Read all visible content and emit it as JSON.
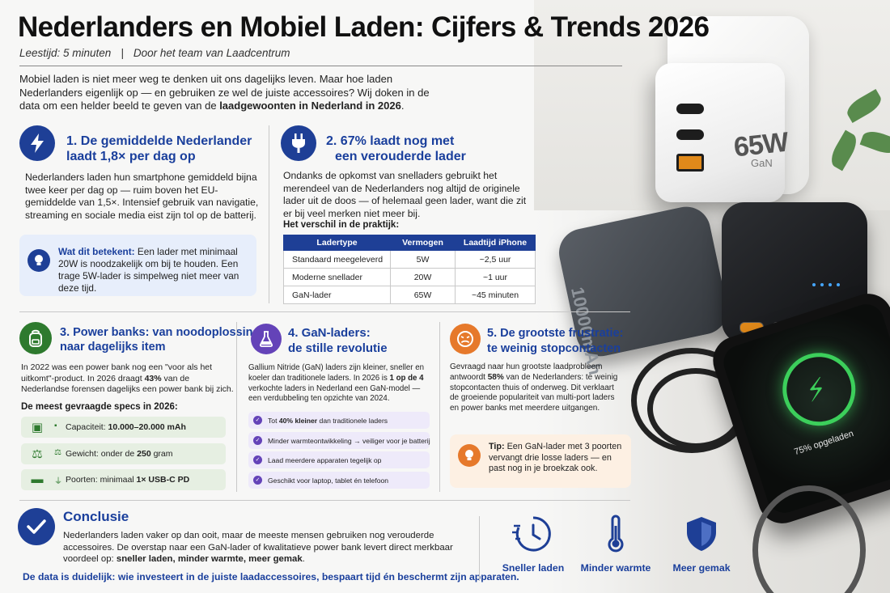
{
  "header": {
    "title": "Nederlanders en Mobiel Laden: Cijfers & Trends 2026",
    "reading_time": "Leestijd: 5 minuten",
    "separator": "|",
    "author": "Door het team van Laadcentrum"
  },
  "intro": {
    "text": "Mobiel laden is niet meer weg te denken uit ons dagelijks leven. Maar hoe laden Nederlanders eigenlijk op — en gebruiken ze wel de juiste accessoires? Wij doken in de data om een helder beeld te geven van de ",
    "bold": "laadgewoonten in Nederland in 2026",
    "end": "."
  },
  "section1": {
    "title_line1": "1. De gemiddelde Nederlander",
    "title_line2": "laadt 1,8× per dag op",
    "body": "Nederlanders laden hun smartphone gemiddeld bijna twee keer per dag op — ruim boven het EU-gemiddelde van 1,5×. Intensief gebruik van navigatie, streaming en sociale media eist zijn tol op de batterij.",
    "meaning_label": "Wat dit betekent:",
    "meaning_text": " Een lader met minimaal 20W is noodzakelijk om bij te houden. Een trage 5W-lader is simpelweg niet meer van deze tijd."
  },
  "section2": {
    "title_line1": "2. 67% laadt nog met",
    "title_line2": "een verouderde lader",
    "body": "Ondanks de opkomst van snelladers gebruikt het merendeel van de Nederlanders nog altijd de originele lader uit de doos — of helemaal geen lader, want die zit er bij veel merken niet meer bij.",
    "table_heading": "Het verschil in de praktijk:",
    "table_headers": [
      "Ladertype",
      "Vermogen",
      "Laadtijd iPhone"
    ],
    "table_rows": [
      [
        "Standaard meegeleverd",
        "5W",
        "~2,5 uur"
      ],
      [
        "Moderne snellader",
        "20W",
        "~1 uur"
      ],
      [
        "GaN-lader",
        "65W",
        "~45 minuten"
      ]
    ]
  },
  "section3": {
    "title_line1": "3. Power banks: van noodoplossing",
    "title_line2": "naar dagelijks item",
    "body_a": "In 2022 was een power bank nog een \"voor als het uitkomt\"-product. In 2026 draagt ",
    "body_pct": "43%",
    "body_b": " van de Nederlandse forensen dagelijks een power bank bij zich.",
    "specs_heading": "De meest gevraagde specs in 2026:",
    "specs": [
      {
        "label": "Capaciteit: ",
        "value": "10.000–20.000 mAh",
        "icon": "box-icon"
      },
      {
        "label": "Gewicht: onder de ",
        "value": "250",
        "suffix": " gram",
        "icon": "scale-icon"
      },
      {
        "label": "Poorten: minimaal ",
        "value": "1× USB-C PD",
        "icon": "battery-icon"
      }
    ]
  },
  "section4": {
    "title_line1": "4. GaN-laders:",
    "title_line2": "de stille revolutie",
    "body_a": "Gallium Nitride (GaN) laders zijn kleiner, sneller en koeler dan traditionele laders. In 2026 is ",
    "body_bold": "1 op de 4",
    "body_b": " verkochte laders in Nederland een GaN-model — een verdubbeling ten opzichte van 2024.",
    "items": [
      {
        "pre": "Tot ",
        "bold": "40% kleiner",
        "post": " dan traditionele laders"
      },
      {
        "pre": "Minder warmteontwikkeling → veiliger voor je batterij",
        "bold": "",
        "post": ""
      },
      {
        "pre": "Laad meerdere apparaten tegelijk op",
        "bold": "",
        "post": ""
      },
      {
        "pre": "Geschikt voor laptop, tablet én telefoon",
        "bold": "",
        "post": ""
      }
    ]
  },
  "section5": {
    "title_line1": "5. De grootste frustratie:",
    "title_line2": "te weinig stopcontacten",
    "body_a": "Gevraagd naar hun grootste laadprobleem antwoordt ",
    "body_pct": "58%",
    "body_b": " van de Nederlanders: te weinig stopcontacten thuis of onderweg. Dit verklaart de groeiende populariteit van multi-port laders en power banks met meerdere uitgangen.",
    "tip_label": "Tip:",
    "tip_text": " Een GaN-lader met 3 poorten vervangt drie losse laders — en past nog in je broekzak ook."
  },
  "conclusion": {
    "title": "Conclusie",
    "text": "Nederlanders laden vaker op dan ooit, maar de meeste mensen gebruiken nog verouderde accessoires. De overstap naar een GaN-lader of kwalitatieve power bank levert direct merkbaar voordeel op: ",
    "bold": "sneller laden, minder warmte, meer gemak",
    "end": ".",
    "footer": "De data is duidelijk: wie investeert in de juiste laadaccessoires, bespaart tijd én beschermt zijn apparaten.",
    "benefits": [
      {
        "label": "Sneller laden",
        "icon": "clock-icon"
      },
      {
        "label": "Minder warmte",
        "icon": "thermometer-icon"
      },
      {
        "label": "Meer gemak",
        "icon": "shield-icon"
      }
    ]
  },
  "photo": {
    "charger_watt": "65W",
    "charger_tech": "GaN",
    "powerbank_label": "10000mAh",
    "phone_status": "75% opgeladen"
  },
  "colors": {
    "primary": "#1a3f9c",
    "section3": "#2e7a2e",
    "section4": "#6443b8",
    "section5": "#e6792b"
  }
}
